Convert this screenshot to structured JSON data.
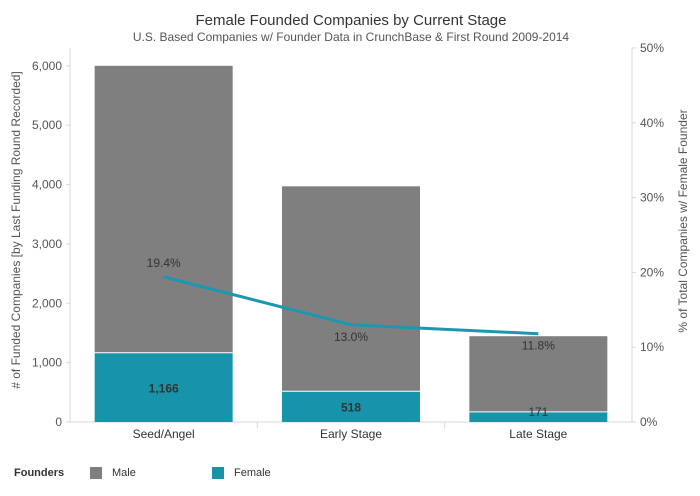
{
  "chart_data": {
    "type": "bar",
    "title": "Female Founded Companies by Current Stage",
    "subtitle": "U.S. Based Companies w/ Founder Data in CrunchBase & First Round 2009-2014",
    "categories": [
      "Seed/Angel",
      "Early Stage",
      "Late Stage"
    ],
    "stacked": true,
    "series": [
      {
        "name": "Female",
        "values": [
          1166,
          518,
          171
        ],
        "labels": [
          "1,166",
          "518",
          "171"
        ],
        "color": "#1894aa"
      },
      {
        "name": "Male",
        "values": [
          4834,
          3452,
          1274
        ],
        "color": "#7f7f7f"
      }
    ],
    "line_series": {
      "values": [
        19.4,
        13.0,
        11.8
      ],
      "labels": [
        "19.4%",
        "13.0%",
        "11.8%"
      ],
      "color": "#1b98b0",
      "axis": "right"
    },
    "ylabel": "# of Funded Companies  [by Last Funding Round Recorded]",
    "ylabel_right": "% of Total Companies w/ Female Founder",
    "ylim": [
      0,
      6300
    ],
    "y_ticks": [
      0,
      1000,
      2000,
      3000,
      4000,
      5000,
      6000
    ],
    "y_tick_labels": [
      "0",
      "1,000",
      "2,000",
      "3,000",
      "4,000",
      "5,000",
      "6,000"
    ],
    "ylim_right": [
      0,
      50
    ],
    "y_right_ticks": [
      0,
      10,
      20,
      30,
      40,
      50
    ],
    "y_right_tick_labels": [
      "0%",
      "10%",
      "20%",
      "30%",
      "40%",
      "50%"
    ],
    "grid": false
  },
  "legend": {
    "title": "Founders",
    "items": [
      {
        "label": "Male",
        "color": "#7f7f7f"
      },
      {
        "label": "Female",
        "color": "#1894aa"
      }
    ]
  }
}
